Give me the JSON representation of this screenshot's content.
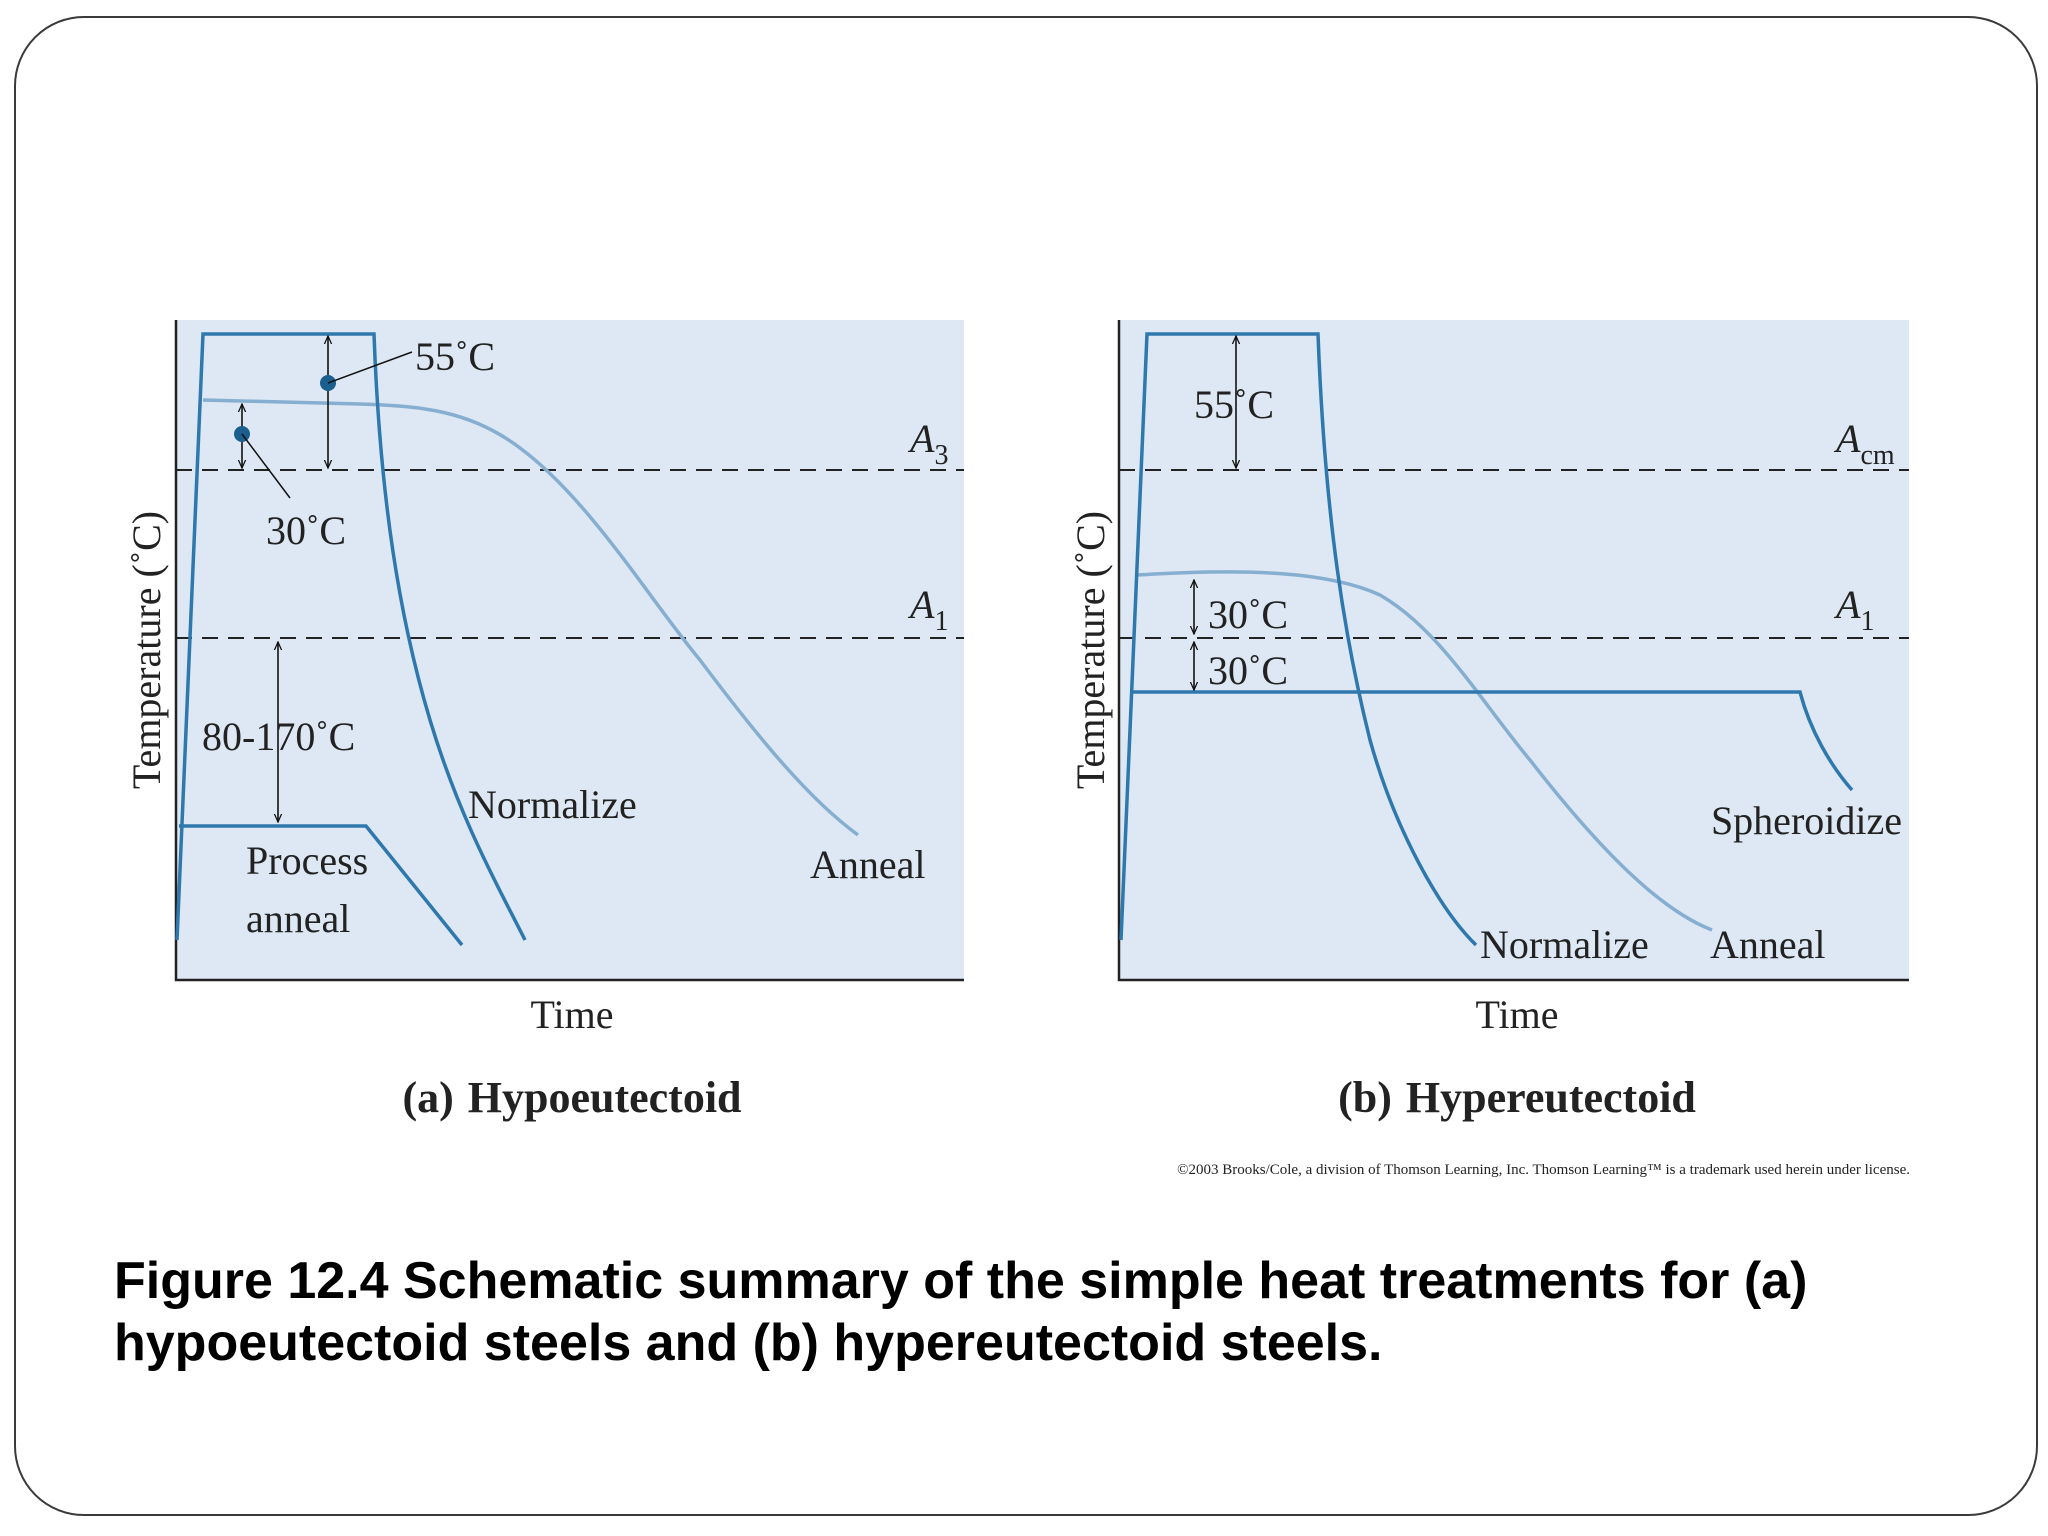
{
  "panels": {
    "a": {
      "y_axis_label": "Temperature (˚C)",
      "x_axis_label": "Time",
      "label_prefix": "(a)",
      "label_name": "Hypoeutectoid",
      "line_upper": {
        "main": "A",
        "sub": "3"
      },
      "line_lower": {
        "main": "A",
        "sub": "1"
      },
      "ann_55": "55˚C",
      "ann_30": "30˚C",
      "ann_range": "80-170˚C",
      "curve_normalize": "Normalize",
      "curve_anneal": "Anneal",
      "curve_process_1": "Process",
      "curve_process_2": "anneal"
    },
    "b": {
      "y_axis_label": "Temperature (˚C)",
      "x_axis_label": "Time",
      "label_prefix": "(b)",
      "label_name": "Hypereutectoid",
      "line_upper": {
        "main": "A",
        "sub": "cm"
      },
      "line_lower": {
        "main": "A",
        "sub": "1"
      },
      "ann_55": "55˚C",
      "ann_30_above": "30˚C",
      "ann_30_below": "30˚C",
      "curve_spheroidize": "Spheroidize",
      "curve_normalize": "Normalize",
      "curve_anneal": "Anneal"
    }
  },
  "copyright": "©2003 Brooks/Cole, a division of Thomson Learning, Inc.  Thomson Learning™ is a trademark used herein under license.",
  "caption": {
    "line1": "Figure 12.4  Schematic summary of the simple heat treatments for (a)",
    "line2": "hypoeutectoid steels and (b) hypereutectoid steels."
  },
  "colors": {
    "plot_background": "#dde8f4",
    "curve_dark": "#2e78ad",
    "curve_light": "#86aed0",
    "marker": "#1a5f8e"
  }
}
